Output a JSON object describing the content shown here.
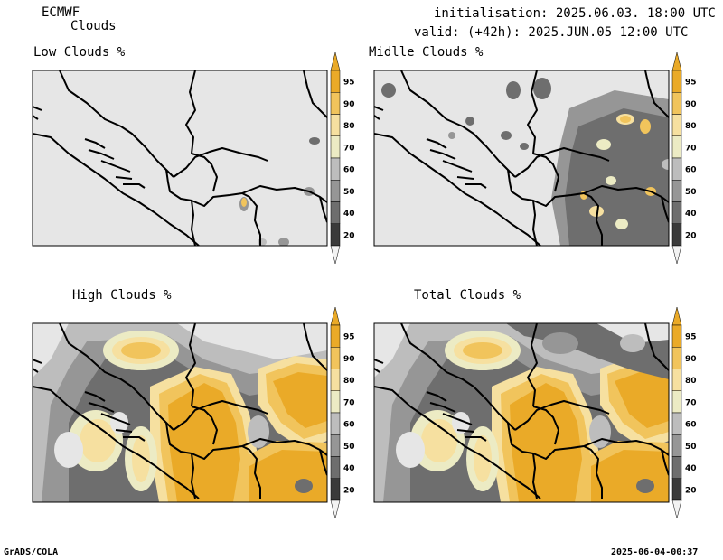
{
  "header": {
    "model": "ECMWF",
    "product": "Clouds",
    "initialisation": "initialisation: 2025.06.03. 18:00 UTC",
    "valid": "valid: (+42h): 2025.JUN.05 12:00 UTC"
  },
  "panels": [
    {
      "title": "Low Clouds %"
    },
    {
      "title": "Midlle Clouds %"
    },
    {
      "title": "High Clouds %"
    },
    {
      "title": "Total Clouds %"
    }
  ],
  "colorbar": {
    "labels": [
      "20",
      "40",
      "50",
      "60",
      "70",
      "80",
      "90",
      "95"
    ],
    "colors": [
      "#3a3a3a",
      "#6e6e6e",
      "#969696",
      "#bdbdbd",
      "#ecebc4",
      "#f6e0a0",
      "#f1c45c",
      "#eaaa28"
    ],
    "under_color": "#f2f2f2",
    "over_color": "#eaaa28"
  },
  "colors": {
    "background": "#e6e6e6",
    "border": "#000000"
  },
  "footer": {
    "left": "GrADS/COLA",
    "right": "2025-06-04-00:37"
  }
}
